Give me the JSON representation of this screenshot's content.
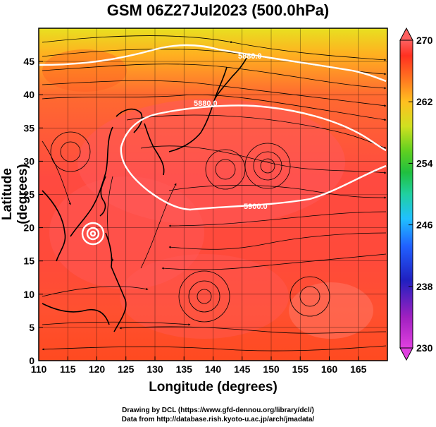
{
  "title": "GSM 06Z27Jul2023 (500.0hPa)",
  "axes": {
    "xlabel": "Longitude (degrees)",
    "ylabel": "Latitude (degrees)",
    "x_ticks": [
      "110",
      "115",
      "120",
      "125",
      "130",
      "135",
      "140",
      "145",
      "150",
      "155",
      "160",
      "165"
    ],
    "y_ticks": [
      "0",
      "5",
      "10",
      "15",
      "20",
      "25",
      "30",
      "35",
      "40",
      "45"
    ],
    "xlim": [
      110,
      170
    ],
    "ylim": [
      0,
      50
    ]
  },
  "colorbar": {
    "ticks": [
      "230",
      "238",
      "246",
      "254",
      "262",
      "270"
    ],
    "range": [
      230,
      270
    ],
    "colors": [
      "#e040e0",
      "#a020c0",
      "#2020c0",
      "#2060ff",
      "#20c0ff",
      "#20d0a0",
      "#20c040",
      "#60d020",
      "#d0e020",
      "#ffc020",
      "#ff7020",
      "#ff3020",
      "#ff6060"
    ]
  },
  "contours": [
    {
      "label": "5880.0",
      "value": 5880
    },
    {
      "label": "5880.0",
      "value": 5880
    },
    {
      "label": "5900.0",
      "value": 5900
    }
  ],
  "credits": {
    "line1": "Drawing by DCL (https://www.gfd-dennou.org/library/dcl/)",
    "line2": "Data from http://database.rish.kyoto-u.ac.jp/arch/jmadata/"
  }
}
